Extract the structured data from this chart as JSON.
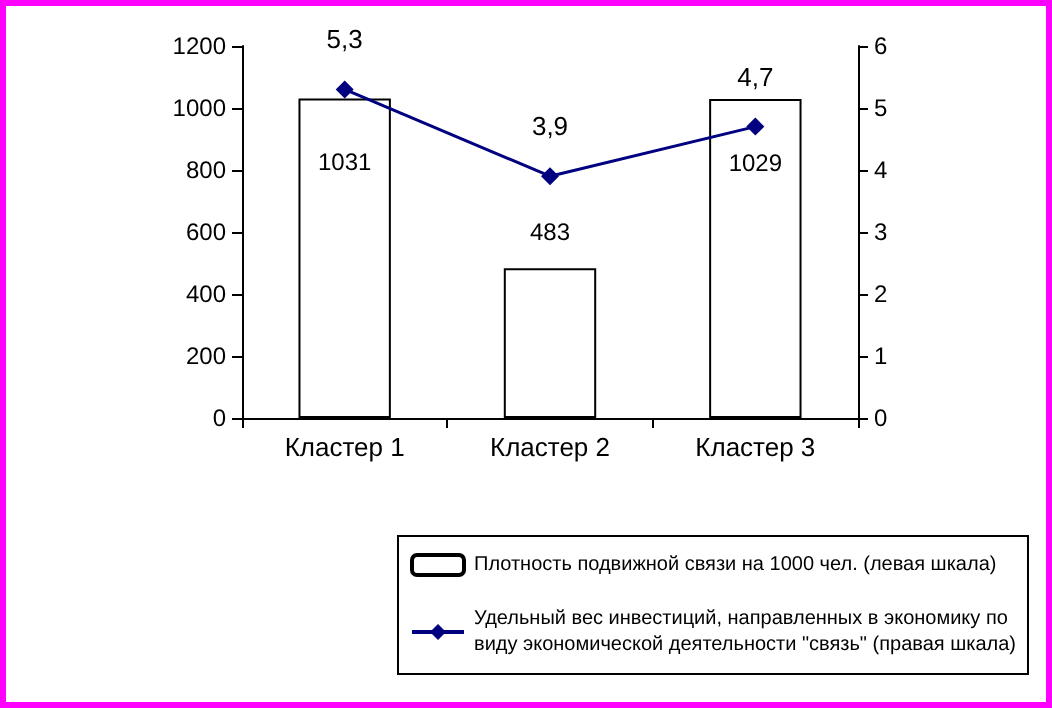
{
  "chart_data": {
    "type": "bar",
    "categories": [
      "Кластер 1",
      "Кластер 2",
      "Кластер 3"
    ],
    "series": [
      {
        "name": "Плотность подвижной связи на 1000 чел. (левая шкала)",
        "color": "#ffffff",
        "values": [
          1031,
          483,
          1029
        ],
        "value_labels": [
          "1031",
          "483",
          "1029"
        ]
      },
      {
        "name": "Удельный вес инвестиций, направленных в экономику по виду экономической деятельности \"связь\" (правая шкала)",
        "type": "line",
        "axis": "y2",
        "color": "#000080",
        "values": [
          5.3,
          3.9,
          4.7
        ],
        "value_labels": [
          "5,3",
          "3,9",
          "4,7"
        ]
      }
    ],
    "ylim": [
      0,
      1200
    ],
    "yticks": [
      0,
      200,
      400,
      600,
      800,
      1000,
      1200
    ],
    "y2lim": [
      0,
      6
    ],
    "y2ticks": [
      0,
      1,
      2,
      3,
      4,
      5,
      6
    ],
    "grid": false,
    "legend": "bottom",
    "marker": "diamond",
    "line_style": "solid"
  }
}
